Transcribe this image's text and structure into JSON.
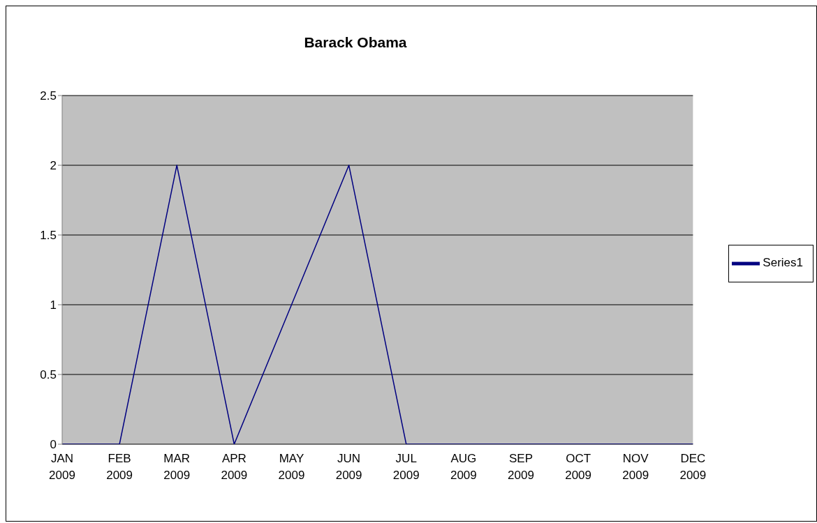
{
  "chart_data": {
    "type": "line",
    "title": "Barack Obama",
    "categories": [
      "JAN 2009",
      "FEB 2009",
      "MAR 2009",
      "APR 2009",
      "MAY 2009",
      "JUN 2009",
      "JUL 2009",
      "AUG 2009",
      "SEP 2009",
      "OCT 2009",
      "NOV 2009",
      "DEC 2009"
    ],
    "series": [
      {
        "name": "Series1",
        "color": "#000080",
        "values": [
          0,
          0,
          2,
          0,
          1,
          2,
          0,
          0,
          0,
          0,
          0,
          0
        ]
      }
    ],
    "ylim": [
      0,
      2.5
    ],
    "yticks": [
      0,
      0.5,
      1,
      1.5,
      2,
      2.5
    ],
    "grid": "y",
    "legend": "right",
    "marker": "none",
    "line_style": "solid"
  }
}
